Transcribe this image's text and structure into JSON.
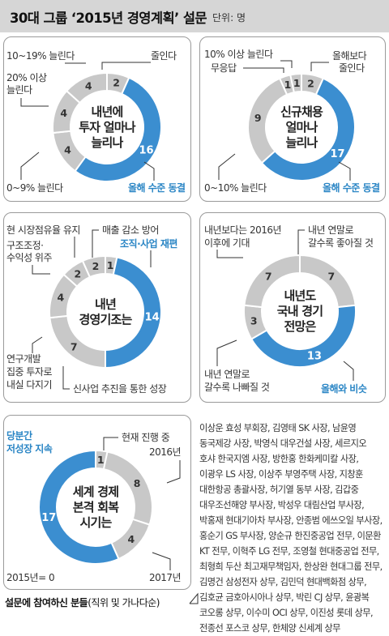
{
  "header": {
    "title": "30대 그룹 ‘2015년 경영계획’ 설문",
    "unit": "단위: 명"
  },
  "colors": {
    "primary": "#3b8ed0",
    "secondary": "#c8c8c8",
    "label_blue": "#2b86c5"
  },
  "chart_data": [
    {
      "type": "pie",
      "title": "내년에 투자 얼마나 늘리나",
      "categories": [
        "줄인다",
        "올해 수준 동결",
        "0~9% 늘린다",
        "20% 이상 늘린다",
        "10~19% 늘린다"
      ],
      "values": [
        2,
        16,
        4,
        4,
        4
      ]
    },
    {
      "type": "pie",
      "title": "신규채용 얼마나 늘리나",
      "categories": [
        "올해보다 줄인다",
        "올해 수준 동결",
        "0~10% 늘린다",
        "무응답",
        "10% 이상 늘린다"
      ],
      "values": [
        2,
        17,
        9,
        1,
        1
      ]
    },
    {
      "type": "pie",
      "title": "내년 경영기조는",
      "categories": [
        "매출 감소 방어",
        "조직·사업 재편",
        "신사업 추진을 통한 성장",
        "연구개발 집중 투자로 내실 다지기",
        "구조조정·수익성 위주",
        "현 시장점유율 유지"
      ],
      "values": [
        1,
        14,
        7,
        4,
        2,
        2
      ]
    },
    {
      "type": "pie",
      "title": "내년도 국내 경기 전망은",
      "categories": [
        "내년 연말로 갈수록 좋아질 것",
        "올해와 비슷",
        "내년 연말로 갈수록 나빠질 것",
        "내년보다는 2016년 이후에 기대"
      ],
      "values": [
        7,
        13,
        3,
        7
      ]
    },
    {
      "type": "pie",
      "title": "세계 경제 본격 회복 시기는",
      "categories": [
        "현재 진행 중",
        "2016년",
        "2017년",
        "당분간 저성장 지속",
        "2015년"
      ],
      "values": [
        1,
        8,
        4,
        17,
        0
      ]
    }
  ],
  "labels": {
    "c1": {
      "l0": "줄인다",
      "l1": "올해 수준 동결",
      "l2": "0~9% 늘린다",
      "l3a": "20% 이상",
      "l3b": "늘린다",
      "l4": "10~19% 늘린다"
    },
    "c2": {
      "l0a": "올해보다",
      "l0b": "줄인다",
      "l1": "올해 수준 동결",
      "l2": "0~10% 늘린다",
      "l3": "무응답",
      "l4": "10% 이상 늘린다"
    },
    "c3": {
      "l0": "매출 감소 방어",
      "l1": "조직·사업 재편",
      "l2": "신사업 추진을 통한 성장",
      "l3a": "연구개발",
      "l3b": "집중 투자로",
      "l3c": "내실 다지기",
      "l4a": "구조조정·",
      "l4b": "수익성 위주",
      "l5": "현 시장점유율 유지"
    },
    "c4": {
      "l0a": "내년 연말로",
      "l0b": "갈수록 좋아질 것",
      "l1": "올해와 비슷",
      "l2a": "내년 연말로",
      "l2b": "갈수록 나빠질 것",
      "l3a": "내년보다는 2016년",
      "l3b": "이후에 기대"
    },
    "c5": {
      "l0": "현재 진행 중",
      "l1": "2016년",
      "l2": "2017년",
      "l3a": "당분간",
      "l3b": "저성장 지속",
      "l4": "2015년= 0"
    },
    "centers": {
      "c1": [
        "내년에",
        "투자 얼마나",
        "늘리나"
      ],
      "c2": [
        "신규채용",
        "얼마나",
        "늘리나"
      ],
      "c3": [
        "내년",
        "경영기조는"
      ],
      "c4": [
        "내년도",
        "국내 경기",
        "전망은"
      ],
      "c5": [
        "세계 경제",
        "본격 회복",
        "시기는"
      ]
    }
  },
  "participants": "이상운 효성 부회장, 김영태 SK 사장, 남윤영 동국제강 사장, 박영식 대우건설 사장, 세르지오 호샤 한국지엠 사장, 방한홍 한화케미칼 사장, 이광우 LS 사장, 이상주 부영주택 사장, 지창훈 대한항공 총괄사장, 허기열 동부 사장, 김갑중 대우조선해양 부사장, 박성우 대림산업 부사장, 박홍재 현대기아차 부사장, 안종범 에쓰오일 부사장, 홍순기 GS 부사장, 양순규 한진중공업 전무, 이문환 KT 전무, 이혁주 LG 전무, 조영철 현대중공업 전무, 최형희 두산 최고재무책임자, 한상완 현대그룹 전무, 김명건 삼성전자 상무, 김민덕 현대백화점 상무, 김호균 금호아시아나 상무, 박린 CJ 상무, 윤광복 코오롱 상무, 이수미 OCI 상무, 이진성 롯데 상무, 전종선 포스코 상무, 한체양 신세계 상무",
  "footer": {
    "bold": "설문에 참여하신 분들",
    "rest": "(직위 및 가나다순)"
  }
}
